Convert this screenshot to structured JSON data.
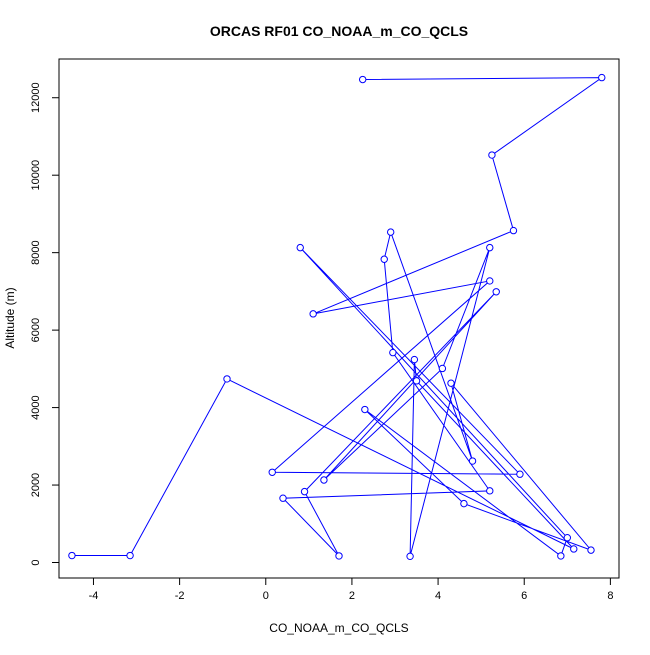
{
  "chart_data": {
    "type": "line",
    "title": "ORCAS RF01 CO_NOAA_m_CO_QCLS",
    "xlabel": "CO_NOAA_m_CO_QCLS",
    "ylabel": "Altitude (m)",
    "xlim": [
      -4.8,
      8.2
    ],
    "ylim": [
      -400,
      13000
    ],
    "x_ticks": [
      -4,
      -2,
      0,
      2,
      4,
      6,
      8
    ],
    "y_ticks": [
      0,
      2000,
      4000,
      6000,
      8000,
      10000,
      12000
    ],
    "grid": false,
    "legend": "none",
    "markers": "open-circle",
    "series": [
      {
        "color": "#0000ff",
        "points": [
          [
            2.25,
            12470
          ],
          [
            7.8,
            12520
          ],
          [
            5.25,
            10520
          ],
          [
            5.75,
            8570
          ],
          [
            1.1,
            6420
          ],
          [
            5.2,
            7270
          ],
          [
            0.15,
            2330
          ],
          [
            5.9,
            2280
          ],
          [
            0.8,
            8130
          ],
          [
            7.0,
            640
          ],
          [
            6.85,
            170
          ],
          [
            2.3,
            3950
          ],
          [
            4.6,
            1520
          ],
          [
            7.55,
            320
          ],
          [
            4.3,
            4630
          ],
          [
            4.8,
            2620
          ],
          [
            2.9,
            8530
          ],
          [
            2.75,
            7830
          ],
          [
            2.95,
            5420
          ],
          [
            5.2,
            1850
          ],
          [
            0.4,
            1660
          ],
          [
            1.7,
            170
          ],
          [
            0.9,
            1830
          ],
          [
            5.35,
            6990
          ],
          [
            1.35,
            2130
          ],
          [
            4.1,
            5010
          ],
          [
            5.2,
            8130
          ],
          [
            3.35,
            160
          ],
          [
            3.45,
            5240
          ],
          [
            3.5,
            4690
          ],
          [
            7.15,
            350
          ],
          [
            -0.9,
            4740
          ],
          [
            -3.15,
            180
          ],
          [
            -4.5,
            180
          ]
        ]
      }
    ]
  }
}
